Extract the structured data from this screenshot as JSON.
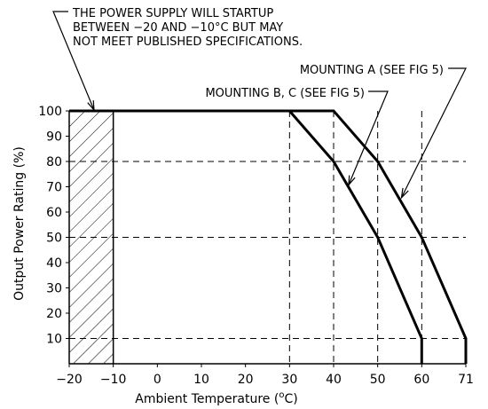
{
  "chart_data": {
    "type": "line",
    "title": "",
    "xlabel": "Ambient Temperature (°C)",
    "xlabel_main": "Ambient Temperature (",
    "xlabel_unit_sup": "o",
    "xlabel_unit": "C)",
    "ylabel": "Output Power Rating (%)",
    "x_ticks": [
      -20,
      -10,
      0,
      10,
      20,
      30,
      40,
      50,
      60,
      71
    ],
    "y_ticks": [
      10,
      20,
      30,
      40,
      50,
      60,
      70,
      80,
      90,
      100
    ],
    "xlim": [
      -20,
      71
    ],
    "ylim": [
      0,
      100
    ],
    "grid": false,
    "series": [
      {
        "name": "MOUNTING A (SEE FIG 5)",
        "x": [
          -20,
          40,
          50,
          60,
          71,
          71
        ],
        "y": [
          100,
          100,
          80,
          50,
          10,
          0
        ]
      },
      {
        "name": "MOUNTING B, C (SEE FIG 5)",
        "x": [
          -20,
          30,
          40,
          50,
          60,
          60
        ],
        "y": [
          100,
          100,
          80,
          50,
          10,
          0
        ]
      }
    ],
    "hatched_region": {
      "x": [
        -20,
        -10
      ],
      "y": [
        0,
        100
      ]
    },
    "reference_lines": {
      "horizontal_y": [
        80,
        50,
        10
      ],
      "vertical_x": [
        30,
        40,
        50,
        60
      ]
    },
    "annotations": {
      "startup_note": [
        "THE POWER SUPPLY WILL STARTUP",
        "BETWEEN −20 AND −10°C BUT MAY",
        "NOT MEET PUBLISHED SPECIFICATIONS."
      ],
      "mounting_a_label": "MOUNTING A (SEE FIG 5)",
      "mounting_bc_label": "MOUNTING B, C (SEE FIG 5)"
    }
  }
}
